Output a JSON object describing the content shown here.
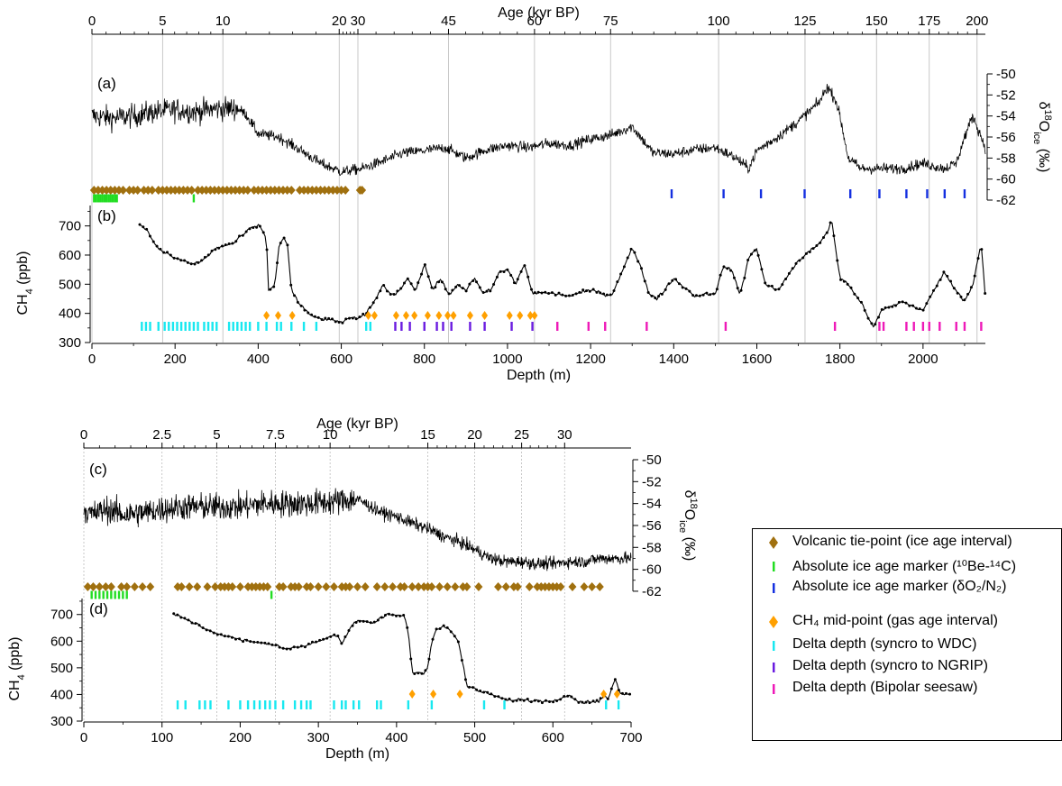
{
  "figure": {
    "colors": {
      "volcanic": "#A0700F",
      "be14c": "#22DD22",
      "o2n2": "#1530E0",
      "ch4mid": "#FFA000",
      "wdc": "#18E8F0",
      "ngrip": "#6A1BE0",
      "seesaw": "#EE1AB8",
      "grid": "#bbbbbb",
      "line": "#000000"
    },
    "legend": [
      {
        "key": "volcanic",
        "symbol": "diamond",
        "label": "Volcanic tie-point (ice age interval)"
      },
      {
        "key": "be14c",
        "symbol": "bar",
        "label": "Absolute ice age marker (¹⁰Be-¹⁴C)"
      },
      {
        "key": "o2n2",
        "symbol": "bar",
        "label": "Absolute ice age marker (δO₂/N₂)"
      },
      {
        "key": "ch4mid",
        "symbol": "diamond",
        "label": "CH₄ mid-point (gas age interval)"
      },
      {
        "key": "wdc",
        "symbol": "bar",
        "label": "Delta depth (syncro to WDC)"
      },
      {
        "key": "ngrip",
        "symbol": "bar",
        "label": "Delta depth (syncro to NGRIP)"
      },
      {
        "key": "seesaw",
        "symbol": "bar",
        "label": "Delta depth (Bipolar seesaw)"
      }
    ]
  },
  "chart_data": [
    {
      "type": "line",
      "panel": "(a)",
      "series": [
        {
          "name": "",
          "variable": "d18O_ice",
          "approx_profile_depth_m": [
            0,
            50,
            100,
            150,
            200,
            250,
            300,
            350,
            370,
            400,
            450,
            500,
            550,
            600,
            650,
            700,
            750,
            800,
            850,
            900,
            950,
            1000,
            1050,
            1100,
            1150,
            1200,
            1250,
            1300,
            1350,
            1400,
            1450,
            1500,
            1550,
            1580,
            1600,
            1650,
            1700,
            1750,
            1770,
            1790,
            1800,
            1820,
            1850,
            1900,
            1950,
            2000,
            2050,
            2080,
            2100,
            2120,
            2150
          ],
          "approx_profile_value": [
            -54,
            -54.2,
            -54,
            -53.6,
            -53.4,
            -53.6,
            -53.3,
            -53.3,
            -53.8,
            -55.7,
            -56,
            -57.2,
            -58.5,
            -59.3,
            -59,
            -58.3,
            -57.5,
            -57.3,
            -57,
            -58,
            -57.2,
            -56.8,
            -57,
            -56.6,
            -56.8,
            -56.2,
            -55.8,
            -55,
            -57.5,
            -57.6,
            -57.2,
            -57,
            -58,
            -59,
            -57.3,
            -56,
            -54.5,
            -52.7,
            -51.2,
            -52.5,
            -54,
            -58,
            -59,
            -59,
            -59,
            -58.5,
            -59,
            -58.5,
            -56,
            -54,
            -57
          ]
        }
      ],
      "y_axis": {
        "label": "δ¹⁸Oᵢcₑ (‰)",
        "ticks": [
          -50,
          -52,
          -54,
          -56,
          -58,
          -60,
          -62
        ],
        "ylim": [
          -62,
          -50
        ],
        "side": "right"
      },
      "x_axis": {
        "label": "Depth (m)",
        "ticks": [
          0,
          200,
          400,
          600,
          800,
          1000,
          1200,
          1400,
          1600,
          1800,
          2000
        ],
        "xlim": [
          0,
          2150
        ]
      },
      "age_axis": {
        "label": "Age (kyr BP)",
        "ticks": [
          0,
          5,
          10,
          20,
          30,
          45,
          60,
          75,
          100,
          125,
          150,
          175,
          200
        ],
        "tick_depth_m": [
          0,
          170,
          315,
          595,
          640,
          858,
          1065,
          1248,
          1508,
          1716,
          1888,
          2015,
          2130
        ]
      },
      "markers": {
        "volcanic_depth_m": [
          5,
          15,
          25,
          35,
          45,
          55,
          65,
          75,
          90,
          100,
          110,
          125,
          135,
          145,
          160,
          170,
          180,
          190,
          200,
          210,
          220,
          230,
          240,
          255,
          265,
          275,
          285,
          295,
          305,
          315,
          325,
          335,
          345,
          355,
          365,
          375,
          390,
          400,
          410,
          420,
          430,
          440,
          450,
          460,
          470,
          480,
          500,
          510,
          520,
          530,
          540,
          550,
          560,
          570,
          580,
          590,
          600,
          610,
          645,
          650
        ],
        "be14c_depth_m": [
          5,
          10,
          15,
          20,
          25,
          30,
          35,
          40,
          45,
          50,
          55,
          60,
          245
        ],
        "o2n2_depth_m": [
          1395,
          1520,
          1610,
          1715,
          1825,
          1895,
          1960,
          2010,
          2052,
          2100
        ]
      }
    },
    {
      "type": "line",
      "panel": "(b)",
      "series": [
        {
          "name": "",
          "variable": "CH4",
          "approx_profile_depth_m": [
            115,
            130,
            160,
            200,
            240,
            260,
            300,
            340,
            380,
            400,
            410,
            420,
            425,
            430,
            440,
            450,
            460,
            470,
            480,
            500,
            520,
            540,
            560,
            580,
            600,
            620,
            640,
            660,
            680,
            700,
            720,
            740,
            760,
            780,
            800,
            820,
            840,
            860,
            880,
            900,
            920,
            940,
            960,
            980,
            1000,
            1020,
            1040,
            1060,
            1080,
            1100,
            1150,
            1200,
            1250,
            1300,
            1320,
            1340,
            1360,
            1400,
            1450,
            1500,
            1520,
            1540,
            1560,
            1580,
            1600,
            1620,
            1650,
            1700,
            1750,
            1770,
            1780,
            1800,
            1820,
            1850,
            1870,
            1880,
            1900,
            1950,
            2000,
            2050,
            2100,
            2120,
            2140,
            2150
          ],
          "approx_profile_value": [
            700,
            690,
            620,
            590,
            570,
            575,
            625,
            640,
            690,
            700,
            690,
            650,
            480,
            480,
            500,
            630,
            660,
            640,
            480,
            430,
            400,
            385,
            380,
            375,
            370,
            385,
            380,
            400,
            440,
            500,
            460,
            480,
            520,
            480,
            570,
            480,
            520,
            460,
            500,
            480,
            520,
            470,
            480,
            540,
            550,
            500,
            570,
            470,
            470,
            470,
            460,
            480,
            460,
            625,
            560,
            470,
            450,
            520,
            460,
            470,
            560,
            550,
            460,
            590,
            625,
            500,
            480,
            580,
            640,
            680,
            720,
            520,
            500,
            440,
            380,
            350,
            410,
            440,
            410,
            540,
            440,
            500,
            640,
            460
          ]
        }
      ],
      "y_axis": {
        "label": "CH4 (ppb)",
        "ticks": [
          300,
          400,
          500,
          600,
          700
        ],
        "ylim": [
          300,
          770
        ]
      },
      "x_axis": {
        "label": "Depth (m)",
        "ticks": [
          0,
          200,
          400,
          600,
          800,
          1000,
          1200,
          1400,
          1600,
          1800,
          2000
        ],
        "xlim": [
          0,
          2150
        ]
      },
      "markers": {
        "wdc_depth_m": [
          120,
          130,
          140,
          160,
          175,
          185,
          195,
          205,
          215,
          225,
          235,
          245,
          255,
          270,
          280,
          290,
          300,
          330,
          340,
          350,
          360,
          370,
          380,
          400,
          420,
          445,
          455,
          480,
          510,
          540,
          660,
          670
        ],
        "ch4mid_depth_m": [
          420,
          448,
          482,
          665,
          680,
          732,
          756,
          776,
          808,
          835,
          856,
          870,
          910,
          945,
          1005,
          1030,
          1055,
          1065
        ],
        "ngrip_depth_m": [
          730,
          745,
          765,
          800,
          830,
          845,
          865,
          910,
          945,
          1010,
          1060
        ],
        "seesaw_depth_m": [
          1120,
          1195,
          1235,
          1335,
          1525,
          1788,
          1895,
          1905,
          1960,
          1978,
          2000,
          2015,
          2040,
          2080,
          2100,
          2140
        ]
      }
    },
    {
      "type": "line",
      "panel": "(c)",
      "series": [
        {
          "name": "",
          "variable": "d18O_ice",
          "approx_profile_depth_m": [
            0,
            10,
            30,
            50,
            80,
            100,
            130,
            160,
            200,
            230,
            260,
            290,
            320,
            350,
            360,
            380,
            400,
            420,
            440,
            460,
            480,
            500,
            520,
            540,
            560,
            580,
            600,
            620,
            640,
            660,
            680,
            700
          ],
          "approx_profile_value": [
            -54.5,
            -55,
            -54.5,
            -55,
            -54.8,
            -54.5,
            -54.3,
            -54.3,
            -54.3,
            -54,
            -54,
            -54,
            -53.8,
            -53.6,
            -54,
            -54.8,
            -55.2,
            -55.8,
            -56.3,
            -57,
            -57.5,
            -58.2,
            -59,
            -59.3,
            -59.3,
            -59.5,
            -59.5,
            -59.3,
            -59.3,
            -59,
            -59,
            -59
          ]
        }
      ],
      "y_axis": {
        "label": "δ¹⁸Oᵢcₑ (‰)",
        "ticks": [
          -50,
          -52,
          -54,
          -56,
          -58,
          -60,
          -62
        ],
        "ylim": [
          -62.5,
          -50
        ],
        "side": "right"
      },
      "x_axis": {
        "label": "Depth (m)",
        "ticks": [
          0,
          100,
          200,
          300,
          400,
          500,
          600,
          700
        ],
        "xlim": [
          0,
          700
        ]
      },
      "age_axis": {
        "label": "Age (kyr BP)",
        "ticks": [
          0,
          2.5,
          5,
          7.5,
          10,
          15,
          20,
          25,
          30
        ],
        "tick_depth_m": [
          0,
          100,
          170,
          245,
          315,
          440,
          500,
          560,
          615
        ]
      },
      "markers": {
        "volcanic_depth_m": [
          5,
          12,
          20,
          28,
          35,
          48,
          55,
          65,
          75,
          85,
          120,
          125,
          135,
          145,
          158,
          168,
          175,
          180,
          185,
          190,
          200,
          210,
          215,
          220,
          225,
          230,
          235,
          250,
          255,
          265,
          270,
          275,
          285,
          290,
          300,
          310,
          320,
          330,
          335,
          340,
          350,
          360,
          375,
          385,
          395,
          405,
          410,
          420,
          428,
          435,
          440,
          445,
          455,
          465,
          475,
          485,
          490,
          505,
          530,
          540,
          550,
          555,
          570,
          580,
          585,
          590,
          595,
          600,
          605,
          610,
          625,
          640,
          650,
          660
        ],
        "be14c_depth_m": [
          10,
          15,
          20,
          25,
          30,
          35,
          40,
          45,
          50,
          55,
          240
        ]
      }
    },
    {
      "type": "line",
      "panel": "(d)",
      "series": [
        {
          "name": "",
          "variable": "CH4",
          "approx_profile_depth_m": [
            115,
            120,
            140,
            160,
            180,
            200,
            220,
            240,
            250,
            260,
            280,
            300,
            320,
            325,
            330,
            340,
            350,
            370,
            380,
            390,
            400,
            410,
            415,
            420,
            425,
            430,
            435,
            440,
            445,
            450,
            460,
            470,
            480,
            490,
            500,
            520,
            540,
            560,
            580,
            600,
            610,
            620,
            630,
            640,
            660,
            665,
            670,
            675,
            680,
            685,
            690,
            700
          ],
          "approx_profile_value": [
            700,
            695,
            670,
            640,
            620,
            605,
            595,
            590,
            580,
            570,
            580,
            600,
            625,
            620,
            590,
            645,
            680,
            665,
            690,
            700,
            700,
            690,
            640,
            480,
            480,
            480,
            480,
            500,
            600,
            640,
            660,
            640,
            590,
            430,
            420,
            400,
            380,
            380,
            375,
            370,
            385,
            400,
            380,
            370,
            375,
            400,
            380,
            420,
            460,
            410,
            400,
            405
          ]
        }
      ],
      "y_axis": {
        "label": "CH4 (ppb)",
        "ticks": [
          300,
          400,
          500,
          600,
          700
        ],
        "ylim": [
          300,
          760
        ]
      },
      "x_axis": {
        "label": "Depth (m)",
        "ticks": [
          0,
          100,
          200,
          300,
          400,
          500,
          600,
          700
        ],
        "xlim": [
          0,
          700
        ]
      },
      "markers": {
        "wdc_depth_m": [
          120,
          130,
          148,
          155,
          162,
          185,
          200,
          210,
          218,
          225,
          232,
          238,
          245,
          255,
          270,
          278,
          285,
          290,
          320,
          330,
          335,
          345,
          352,
          375,
          380
        ],
        "ch4mid_depth_m": [
          420,
          447,
          481,
          665,
          682
        ],
        "wdc2_depth_m": [
          415,
          445,
          512,
          538,
          668,
          684
        ]
      }
    }
  ]
}
